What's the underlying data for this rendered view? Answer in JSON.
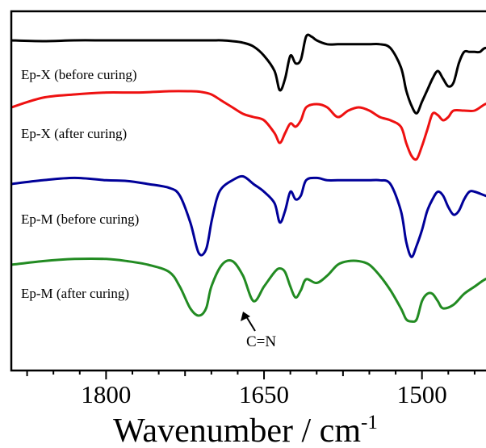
{
  "chart_data": {
    "type": "line",
    "title": "",
    "xlabel": "Wavenumber  /  cm",
    "xlabel_superscript": "-1",
    "ylabel": "",
    "x_reversed": true,
    "xlim": [
      1890,
      1430
    ],
    "x_ticks": [
      1800,
      1650,
      1500
    ],
    "y_ticks_shown": false,
    "grid": false,
    "legend": "none",
    "series": [
      {
        "name": "Ep-X  (before curing)",
        "color": "#000000",
        "x": [
          1890,
          1860,
          1830,
          1800,
          1770,
          1740,
          1720,
          1700,
          1690,
          1680,
          1670,
          1660,
          1650,
          1640,
          1635,
          1630,
          1625,
          1620,
          1615,
          1610,
          1605,
          1600,
          1590,
          1580,
          1570,
          1560,
          1550,
          1540,
          1530,
          1520,
          1515,
          1510,
          1505,
          1500,
          1495,
          1490,
          1485,
          1480,
          1475,
          1470,
          1465,
          1460,
          1455,
          1450,
          1445,
          1440,
          1430
        ],
        "y": [
          0.0,
          -0.1,
          0.0,
          0.0,
          0.0,
          0.0,
          0.0,
          0.0,
          0.0,
          -0.1,
          -0.3,
          -0.8,
          -2.0,
          -4.0,
          -6.5,
          -5.0,
          -2.0,
          -3.0,
          -2.5,
          0.5,
          0.5,
          0.0,
          -0.5,
          -0.5,
          -0.5,
          -0.5,
          -0.5,
          -0.5,
          -1.0,
          -3.5,
          -6.5,
          -8.5,
          -9.5,
          -8.0,
          -6.5,
          -5.0,
          -4.0,
          -5.0,
          -6.0,
          -5.5,
          -3.0,
          -1.5,
          -1.5,
          -1.5,
          -1.5,
          -1.0,
          -1.0
        ]
      },
      {
        "name": "Ep-X (after curing)",
        "color": "#ee1111",
        "x": [
          1890,
          1860,
          1830,
          1800,
          1770,
          1740,
          1720,
          1710,
          1700,
          1690,
          1680,
          1670,
          1660,
          1650,
          1640,
          1635,
          1630,
          1625,
          1620,
          1615,
          1610,
          1600,
          1590,
          1580,
          1570,
          1560,
          1550,
          1540,
          1530,
          1520,
          1515,
          1510,
          1505,
          1500,
          1495,
          1490,
          1485,
          1480,
          1475,
          1470,
          1460,
          1450,
          1440,
          1430
        ],
        "y": [
          0.0,
          1.5,
          2.0,
          2.3,
          2.3,
          2.5,
          2.5,
          2.4,
          2.0,
          1.0,
          0.0,
          -1.0,
          -1.5,
          -2.0,
          -4.0,
          -5.5,
          -4.0,
          -2.5,
          -3.0,
          -2.0,
          0.0,
          0.5,
          0.0,
          -1.5,
          -0.5,
          0.0,
          -0.5,
          -1.5,
          -2.0,
          -3.0,
          -5.5,
          -7.5,
          -8.0,
          -6.0,
          -3.5,
          -1.0,
          -1.2,
          -2.0,
          -1.5,
          -0.5,
          -0.5,
          -0.5,
          0.5,
          1.0
        ]
      },
      {
        "name": "Ep-M (before curing)",
        "color": "#000099",
        "x": [
          1890,
          1860,
          1830,
          1800,
          1780,
          1760,
          1740,
          1730,
          1720,
          1712,
          1705,
          1700,
          1695,
          1690,
          1680,
          1670,
          1660,
          1650,
          1640,
          1635,
          1630,
          1625,
          1620,
          1615,
          1610,
          1600,
          1590,
          1580,
          1570,
          1560,
          1550,
          1540,
          1530,
          1520,
          1515,
          1510,
          1505,
          1500,
          1495,
          1490,
          1485,
          1480,
          1475,
          1470,
          1465,
          1460,
          1455,
          1450,
          1440,
          1430
        ],
        "y": [
          0.0,
          0.5,
          0.8,
          0.5,
          0.4,
          0.0,
          -0.5,
          -1.5,
          -5.0,
          -9.0,
          -8.5,
          -5.0,
          -2.0,
          -0.5,
          0.5,
          1.0,
          0.0,
          -1.0,
          -2.5,
          -5.0,
          -3.5,
          -1.0,
          -2.0,
          -1.5,
          0.5,
          0.8,
          0.5,
          0.5,
          0.5,
          0.5,
          0.5,
          0.5,
          0.0,
          -3.5,
          -7.5,
          -9.5,
          -8.0,
          -6.0,
          -3.5,
          -2.0,
          -1.0,
          -1.5,
          -3.0,
          -4.0,
          -3.5,
          -2.0,
          -1.0,
          -1.0,
          -1.5,
          -2.0
        ]
      },
      {
        "name": "Ep-M (after curing)",
        "color": "#228b22",
        "x": [
          1890,
          1860,
          1830,
          1800,
          1780,
          1760,
          1740,
          1730,
          1720,
          1712,
          1705,
          1700,
          1690,
          1680,
          1670,
          1660,
          1650,
          1640,
          1635,
          1630,
          1625,
          1620,
          1615,
          1610,
          1600,
          1590,
          1580,
          1570,
          1560,
          1550,
          1540,
          1530,
          1520,
          1515,
          1510,
          1505,
          1500,
          1495,
          1490,
          1485,
          1480,
          1470,
          1460,
          1450,
          1440,
          1430
        ],
        "y": [
          0.0,
          0.5,
          0.8,
          0.8,
          0.5,
          0.0,
          -1.0,
          -3.0,
          -6.0,
          -7.0,
          -6.0,
          -3.0,
          0.0,
          0.5,
          -1.5,
          -5.0,
          -3.0,
          -1.0,
          -0.5,
          -1.0,
          -3.0,
          -4.5,
          -3.5,
          -2.0,
          -2.5,
          -1.5,
          0.0,
          0.5,
          0.5,
          0.0,
          -1.5,
          -3.5,
          -6.0,
          -7.5,
          -7.8,
          -7.5,
          -5.0,
          -4.0,
          -4.0,
          -5.0,
          -6.0,
          -5.5,
          -4.0,
          -3.0,
          -2.0,
          -1.5
        ]
      }
    ],
    "annotations": [
      {
        "text": "C=N",
        "x": 1652
      }
    ]
  }
}
